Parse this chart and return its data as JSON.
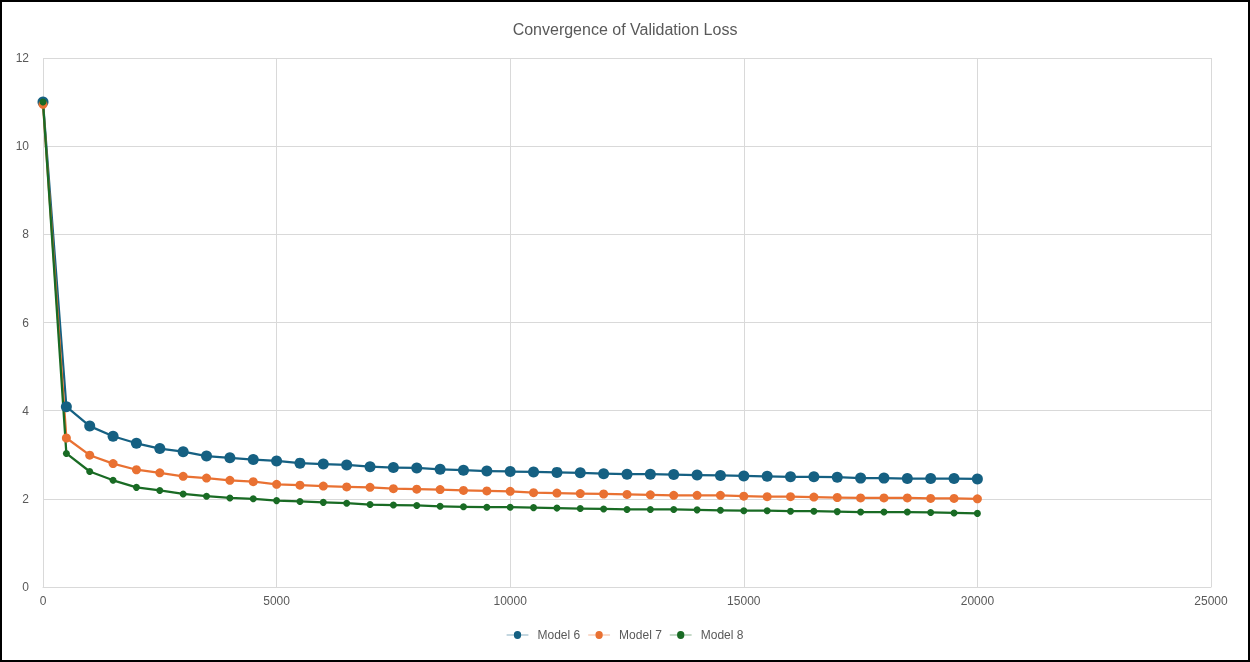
{
  "chart_data": {
    "type": "line",
    "title": "Convergence of Validation Loss",
    "x": [
      0,
      500,
      1000,
      1500,
      2000,
      2500,
      3000,
      3500,
      4000,
      4500,
      5000,
      5500,
      6000,
      6500,
      7000,
      7500,
      8000,
      8500,
      9000,
      9500,
      10000,
      10500,
      11000,
      11500,
      12000,
      12500,
      13000,
      13500,
      14000,
      14500,
      15000,
      15500,
      16000,
      16500,
      17000,
      17500,
      18000,
      18500,
      19000,
      19500,
      20000
    ],
    "series": [
      {
        "name": "Model 6",
        "color": "#156082",
        "values": [
          11.0,
          4.09,
          3.65,
          3.42,
          3.26,
          3.14,
          3.07,
          2.97,
          2.93,
          2.89,
          2.86,
          2.81,
          2.79,
          2.77,
          2.73,
          2.71,
          2.7,
          2.67,
          2.65,
          2.63,
          2.62,
          2.61,
          2.6,
          2.59,
          2.57,
          2.56,
          2.56,
          2.55,
          2.54,
          2.53,
          2.52,
          2.51,
          2.5,
          2.5,
          2.49,
          2.47,
          2.47,
          2.46,
          2.46,
          2.46,
          2.45
        ]
      },
      {
        "name": "Model 7",
        "color": "#e97132",
        "values": [
          10.95,
          3.38,
          2.99,
          2.8,
          2.66,
          2.59,
          2.51,
          2.47,
          2.42,
          2.39,
          2.33,
          2.31,
          2.29,
          2.27,
          2.26,
          2.23,
          2.22,
          2.21,
          2.19,
          2.18,
          2.17,
          2.14,
          2.13,
          2.12,
          2.11,
          2.1,
          2.09,
          2.08,
          2.08,
          2.08,
          2.06,
          2.05,
          2.05,
          2.04,
          2.03,
          2.02,
          2.02,
          2.02,
          2.01,
          2.01,
          2.0
        ]
      },
      {
        "name": "Model 8",
        "color": "#196b24",
        "values": [
          11.0,
          3.03,
          2.62,
          2.42,
          2.26,
          2.19,
          2.11,
          2.06,
          2.02,
          2.0,
          1.96,
          1.94,
          1.92,
          1.9,
          1.87,
          1.86,
          1.85,
          1.83,
          1.82,
          1.81,
          1.81,
          1.8,
          1.79,
          1.78,
          1.77,
          1.76,
          1.76,
          1.76,
          1.75,
          1.74,
          1.73,
          1.73,
          1.72,
          1.72,
          1.71,
          1.7,
          1.7,
          1.7,
          1.69,
          1.68,
          1.67
        ]
      }
    ],
    "xlim": [
      0,
      25000
    ],
    "xticks": [
      0,
      5000,
      10000,
      15000,
      20000,
      25000
    ],
    "ylim": [
      0,
      12
    ],
    "yticks": [
      0,
      2,
      4,
      6,
      8,
      10,
      12
    ],
    "grid": true,
    "legend": "bottom",
    "marker": "circle",
    "line_style": "solid"
  }
}
